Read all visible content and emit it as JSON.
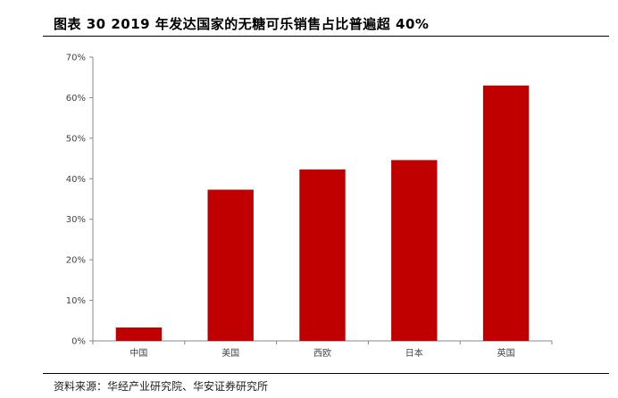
{
  "title": "图表 30 2019 年发达国家的无糖可乐销售占比普遍超 40%",
  "source": "资料来源：华经产业研究院、华安证券研究所",
  "chart_data": {
    "type": "bar",
    "categories": [
      "中国",
      "美国",
      "西欧",
      "日本",
      "英国"
    ],
    "values": [
      3.3,
      37.3,
      42.3,
      44.6,
      63.0
    ],
    "yticks": [
      "0%",
      "10%",
      "20%",
      "30%",
      "40%",
      "50%",
      "60%",
      "70%"
    ],
    "ylim": [
      0,
      70
    ],
    "bar_color": "#C00000",
    "grid": false
  }
}
